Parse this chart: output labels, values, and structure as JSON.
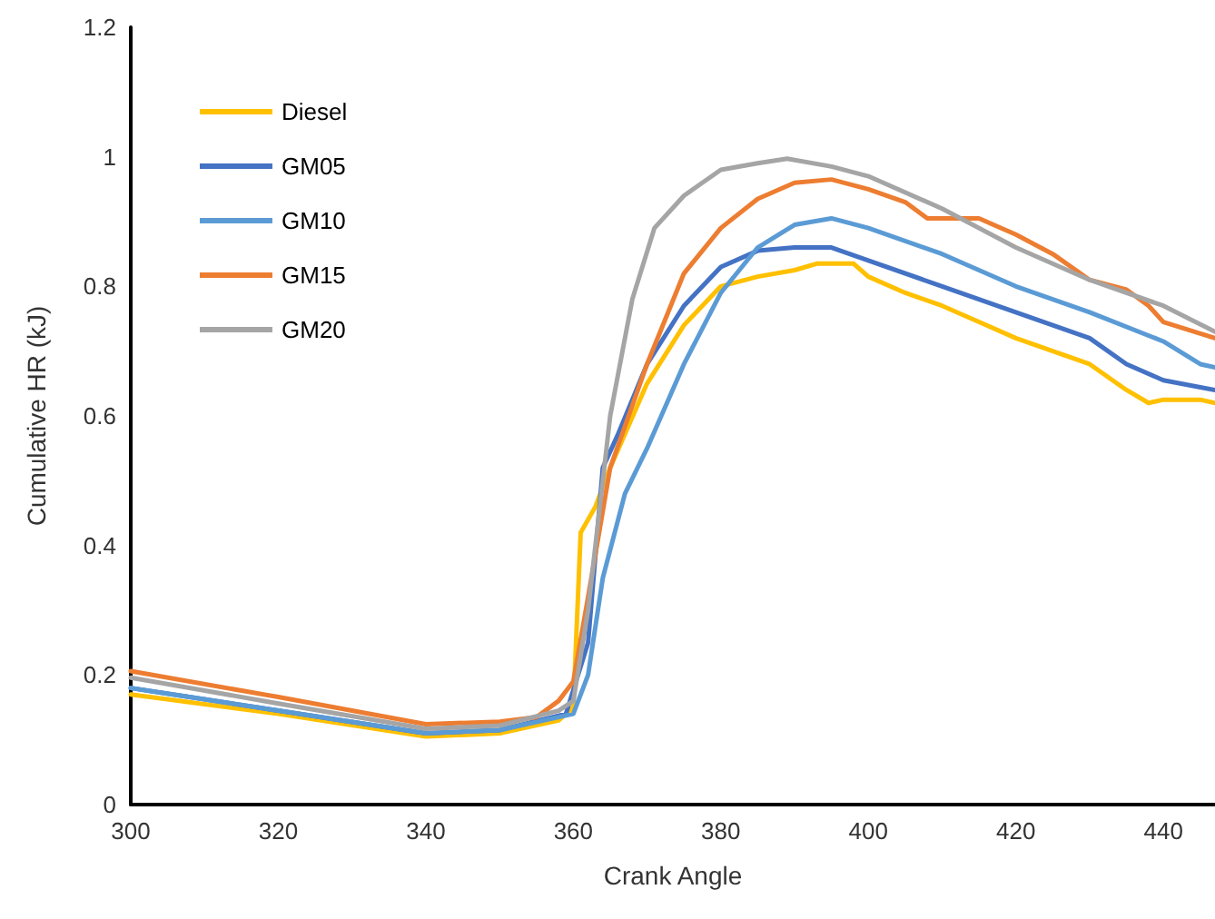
{
  "chart_data": {
    "type": "line",
    "xlabel": "Crank Angle",
    "ylabel": "Cumulative HR (kJ)",
    "xlim": [
      300,
      447
    ],
    "xticks": [
      300,
      320,
      340,
      360,
      380,
      400,
      420,
      440
    ],
    "ylim": [
      0,
      1.2
    ],
    "yticks": [
      {
        "value": 0,
        "label": "0"
      },
      {
        "value": 0.2,
        "label": "0.2"
      },
      {
        "value": 0.4,
        "label": "0.4"
      },
      {
        "value": 0.6,
        "label": "0.6"
      },
      {
        "value": 0.8,
        "label": "0.8"
      },
      {
        "value": 1,
        "label": "1"
      },
      {
        "value": 1.2,
        "label": "1.2"
      }
    ],
    "grid": false,
    "legend": "top left",
    "marker": "none",
    "line_style": "solid",
    "series": [
      {
        "name": "Diesel",
        "color": "#ffc000",
        "x": [
          300,
          320,
          340,
          350,
          358,
          360,
          361,
          363,
          365,
          370,
          375,
          380,
          385,
          390,
          393,
          398,
          400,
          405,
          410,
          415,
          420,
          425,
          430,
          435,
          438,
          440,
          445,
          447
        ],
        "values": [
          0.17,
          0.14,
          0.105,
          0.11,
          0.13,
          0.15,
          0.42,
          0.46,
          0.52,
          0.65,
          0.74,
          0.8,
          0.815,
          0.825,
          0.835,
          0.835,
          0.815,
          0.79,
          0.77,
          0.745,
          0.72,
          0.7,
          0.68,
          0.64,
          0.62,
          0.625,
          0.625,
          0.62
        ]
      },
      {
        "name": "GM05",
        "color": "#4472c4",
        "x": [
          300,
          320,
          340,
          350,
          359,
          362,
          364,
          366,
          370,
          375,
          380,
          385,
          390,
          395,
          400,
          410,
          420,
          430,
          435,
          440,
          447
        ],
        "values": [
          0.18,
          0.145,
          0.11,
          0.115,
          0.14,
          0.25,
          0.52,
          0.57,
          0.68,
          0.77,
          0.83,
          0.855,
          0.86,
          0.86,
          0.84,
          0.8,
          0.76,
          0.72,
          0.68,
          0.655,
          0.64
        ]
      },
      {
        "name": "GM10",
        "color": "#5b9bd5",
        "x": [
          300,
          320,
          340,
          350,
          360,
          362,
          364,
          367,
          370,
          375,
          380,
          385,
          390,
          395,
          400,
          410,
          420,
          430,
          440,
          445,
          447
        ],
        "values": [
          0.18,
          0.145,
          0.11,
          0.115,
          0.14,
          0.2,
          0.35,
          0.48,
          0.55,
          0.68,
          0.79,
          0.86,
          0.895,
          0.905,
          0.89,
          0.85,
          0.8,
          0.76,
          0.715,
          0.68,
          0.675
        ]
      },
      {
        "name": "GM15",
        "color": "#ed7d31",
        "x": [
          300,
          320,
          340,
          350,
          355,
          358,
          360,
          362,
          365,
          370,
          375,
          380,
          385,
          390,
          395,
          400,
          405,
          408,
          415,
          420,
          425,
          430,
          435,
          438,
          440,
          447
        ],
        "values": [
          0.206,
          0.166,
          0.124,
          0.128,
          0.135,
          0.16,
          0.19,
          0.32,
          0.52,
          0.68,
          0.82,
          0.89,
          0.935,
          0.96,
          0.965,
          0.95,
          0.93,
          0.905,
          0.905,
          0.88,
          0.85,
          0.81,
          0.795,
          0.77,
          0.745,
          0.72
        ]
      },
      {
        "name": "GM20",
        "color": "#a5a5a5",
        "x": [
          300,
          320,
          340,
          350,
          358,
          360,
          362,
          365,
          368,
          371,
          375,
          380,
          385,
          389,
          395,
          400,
          410,
          420,
          430,
          440,
          447
        ],
        "values": [
          0.196,
          0.156,
          0.117,
          0.122,
          0.145,
          0.16,
          0.3,
          0.6,
          0.78,
          0.89,
          0.94,
          0.98,
          0.99,
          0.997,
          0.985,
          0.97,
          0.92,
          0.86,
          0.81,
          0.77,
          0.73
        ]
      }
    ]
  }
}
